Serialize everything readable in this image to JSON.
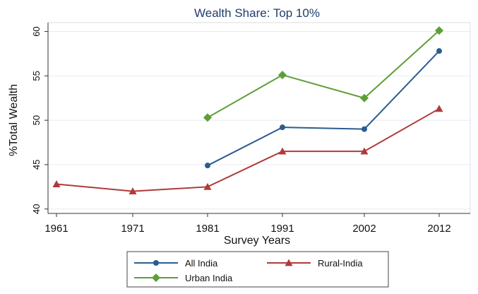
{
  "chart_data": {
    "type": "line",
    "title": "Wealth Share: Top 10%",
    "xlabel": "Survey Years",
    "ylabel": "%Total Wealth",
    "categories": [
      "1961",
      "1971",
      "1981",
      "1991",
      "2002",
      "2012"
    ],
    "x": [
      1961,
      1971,
      1981,
      1991,
      2002,
      2012
    ],
    "yticks": [
      "40",
      "45",
      "50",
      "55",
      "60"
    ],
    "ylim": [
      39.5,
      61
    ],
    "grid": true,
    "legend_position": "bottom",
    "series": [
      {
        "name": "All India",
        "color": "#2a5d8f",
        "marker": "circle",
        "values": [
          null,
          null,
          44.9,
          49.2,
          49.0,
          57.8
        ]
      },
      {
        "name": "Rural-India",
        "color": "#b03a3a",
        "marker": "triangle",
        "values": [
          42.8,
          42.0,
          42.5,
          46.5,
          46.5,
          51.3
        ]
      },
      {
        "name": "Urban India",
        "color": "#5e9e3a",
        "marker": "diamond",
        "values": [
          null,
          null,
          50.3,
          55.1,
          52.5,
          60.1
        ]
      }
    ]
  }
}
